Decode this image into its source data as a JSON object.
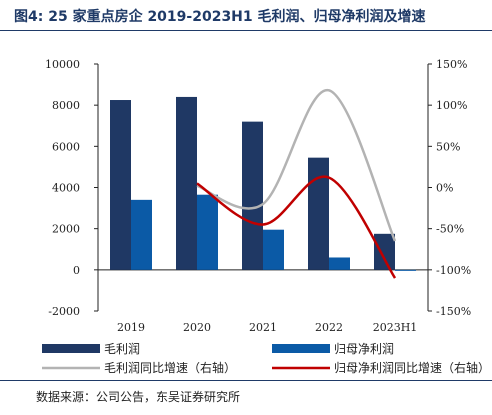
{
  "title": "图4:  25 家重点房企 2019-2023H1 毛利润、归母净利润及增速",
  "source": "数据来源：公司公告，东吴证券研究所",
  "chart_data": {
    "type": "bar",
    "categories": [
      "2019",
      "2020",
      "2021",
      "2022",
      "2023H1"
    ],
    "y_left": {
      "ylim": [
        -2000,
        10000
      ],
      "ticks": [
        "-2000",
        "0",
        "2000",
        "4000",
        "6000",
        "8000",
        "10000"
      ]
    },
    "y_right": {
      "ylim": [
        -150,
        150
      ],
      "ticks": [
        "-150%",
        "-100%",
        "-50%",
        "0%",
        "50%",
        "100%",
        "150%"
      ]
    },
    "series": [
      {
        "name": "毛利润",
        "kind": "bar",
        "axis": "left",
        "color": "#1f3864",
        "values": [
          8250,
          8400,
          7200,
          5450,
          1750
        ]
      },
      {
        "name": "归母净利润",
        "kind": "bar",
        "axis": "left",
        "color": "#0b5aa6",
        "values": [
          3400,
          3650,
          1950,
          600,
          -50
        ]
      },
      {
        "name": "毛利润同比增速（右轴）",
        "kind": "line",
        "axis": "right",
        "color": "#b3b3b3",
        "values": [
          null,
          2,
          -20,
          118,
          -65
        ]
      },
      {
        "name": "归母净利润同比增速（右轴）",
        "kind": "line",
        "axis": "right",
        "color": "#c00000",
        "values": [
          null,
          5,
          -45,
          12,
          -110
        ]
      }
    ],
    "grid": false,
    "legend": "bottom"
  }
}
